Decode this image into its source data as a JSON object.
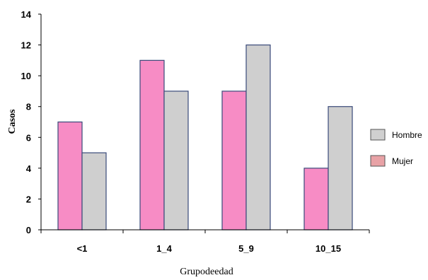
{
  "chart_data": {
    "type": "bar",
    "title": "",
    "xlabel": "Grupodeedad",
    "ylabel": "Casos",
    "ylim": [
      0,
      14
    ],
    "yticks": [
      0,
      2,
      4,
      6,
      8,
      10,
      12,
      14
    ],
    "categories": [
      "<1",
      "1_4",
      "5_9",
      "10_15"
    ],
    "series": [
      {
        "name": "Mujer",
        "values": [
          7,
          11,
          9,
          4
        ],
        "color": "#f78cc5"
      },
      {
        "name": "Hombre",
        "values": [
          5,
          9,
          12,
          8
        ],
        "color": "#cfcfcf"
      }
    ],
    "bar_stroke": "#3a4a7a",
    "grid": false,
    "legend": {
      "placement": "right",
      "items": [
        {
          "label": "Hombre",
          "color": "#d0d0d0"
        },
        {
          "label": "Mujer",
          "color": "#e8a2a6"
        }
      ]
    }
  }
}
